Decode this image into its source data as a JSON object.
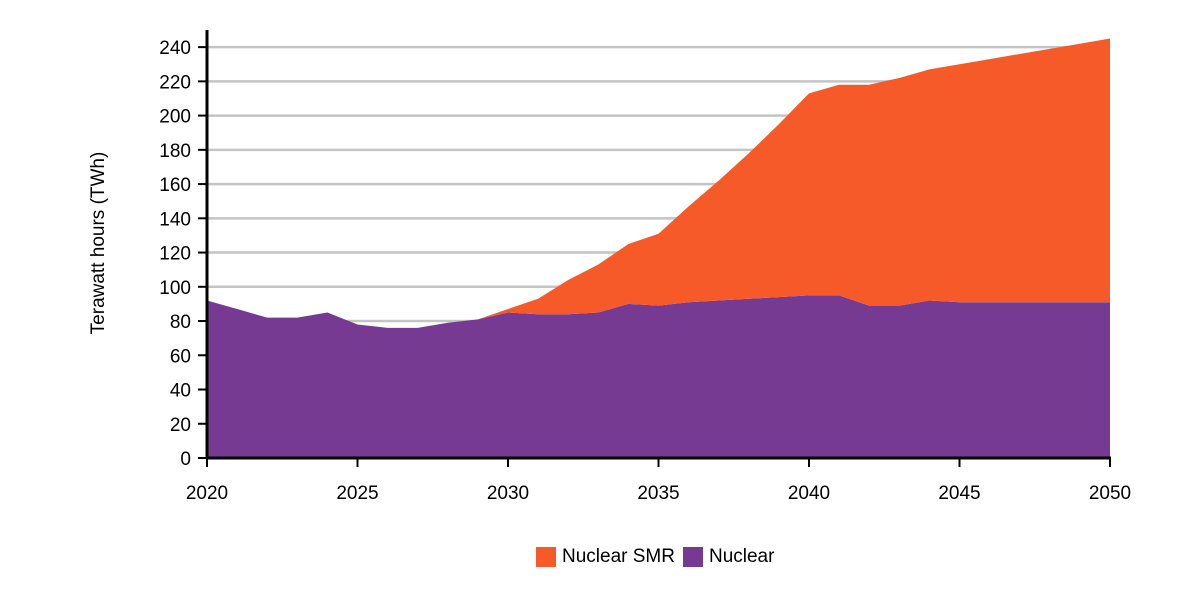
{
  "chart_data": {
    "type": "area",
    "stacked": true,
    "title": "",
    "xlabel": "",
    "ylabel": "Terawatt hours (TWh)",
    "xlim": [
      2020,
      2050
    ],
    "ylim": [
      0,
      250
    ],
    "x_ticks": [
      2020,
      2025,
      2030,
      2035,
      2040,
      2045,
      2050
    ],
    "y_ticks": [
      0,
      20,
      40,
      60,
      80,
      100,
      120,
      140,
      160,
      180,
      200,
      220,
      240
    ],
    "grid": "horizontal",
    "legend_position": "bottom",
    "x": [
      2020,
      2021,
      2022,
      2023,
      2024,
      2025,
      2026,
      2027,
      2028,
      2029,
      2030,
      2031,
      2032,
      2033,
      2034,
      2035,
      2036,
      2037,
      2038,
      2039,
      2040,
      2041,
      2042,
      2043,
      2044,
      2045,
      2046,
      2047,
      2048,
      2049,
      2050
    ],
    "series": [
      {
        "name": "Nuclear",
        "color": "#763a92",
        "values": [
          92,
          87,
          82,
          82,
          85,
          78,
          76,
          76,
          79,
          81,
          85,
          84,
          84,
          85,
          90,
          89,
          91,
          92,
          93,
          94,
          95,
          95,
          89,
          89,
          92,
          91,
          91,
          91,
          91,
          91,
          91
        ]
      },
      {
        "name": "Nuclear SMR",
        "color": "#f55a28",
        "values": [
          0,
          0,
          0,
          0,
          0,
          0,
          0,
          0,
          0,
          0,
          2,
          9,
          20,
          28,
          35,
          42,
          56,
          70,
          85,
          101,
          118,
          123,
          129,
          133,
          135,
          139,
          142,
          145,
          148,
          151,
          154
        ]
      }
    ]
  }
}
